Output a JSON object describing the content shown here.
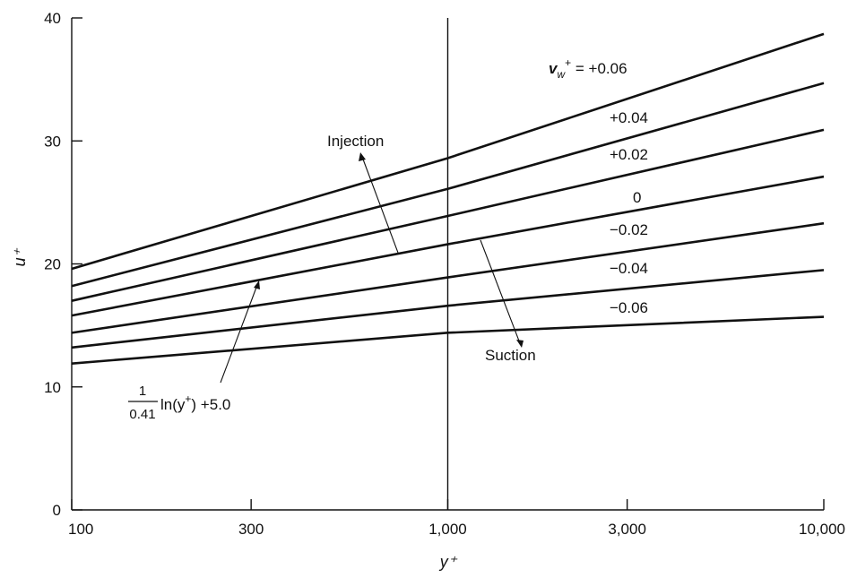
{
  "chart_data": {
    "type": "line",
    "x_scale": "log",
    "xlim": [
      100,
      10000
    ],
    "ylim": [
      0,
      40
    ],
    "xlabel": "y⁺",
    "ylabel": "u⁺",
    "x_ticks": [
      100,
      300,
      1000,
      3000,
      10000
    ],
    "x_tick_labels": [
      "100",
      "300",
      "1,000",
      "3,000",
      "10,000"
    ],
    "y_ticks": [
      0,
      10,
      20,
      30,
      40
    ],
    "y_tick_labels": [
      "0",
      "10",
      "20",
      "30",
      "40"
    ],
    "grid": false,
    "reference_line_x": 1000,
    "series": [
      {
        "name": "v_w⁺ = +0.06",
        "x": [
          100,
          1000,
          10000
        ],
        "y": [
          19.6,
          28.6,
          38.7
        ]
      },
      {
        "name": "+0.04",
        "x": [
          100,
          1000,
          10000
        ],
        "y": [
          18.2,
          26.1,
          34.7
        ]
      },
      {
        "name": "+0.02",
        "x": [
          100,
          1000,
          10000
        ],
        "y": [
          17.0,
          23.9,
          30.9
        ]
      },
      {
        "name": "0",
        "x": [
          100,
          1000,
          10000
        ],
        "y": [
          15.8,
          21.6,
          27.1
        ]
      },
      {
        "name": "−0.02",
        "x": [
          100,
          1000,
          10000
        ],
        "y": [
          14.4,
          18.9,
          23.3
        ]
      },
      {
        "name": "−0.04",
        "x": [
          100,
          1000,
          10000
        ],
        "y": [
          13.2,
          16.6,
          19.5
        ]
      },
      {
        "name": "−0.06",
        "x": [
          100,
          1000,
          10000
        ],
        "y": [
          11.9,
          14.4,
          15.7
        ]
      }
    ],
    "series_labels": {
      "prefix": "v",
      "prefix_sub": "w",
      "prefix_sup": "+",
      "values": [
        "= +0.06",
        "+0.04",
        "+0.02",
        "0",
        "−0.02",
        "−0.04",
        "−0.06"
      ]
    },
    "annotations": {
      "injection": "Injection",
      "suction": "Suction",
      "formula": {
        "numerator": "1",
        "denominator": "0.41",
        "body": "ln(y",
        "sup": "+",
        "tail": ") +5.0"
      }
    }
  }
}
